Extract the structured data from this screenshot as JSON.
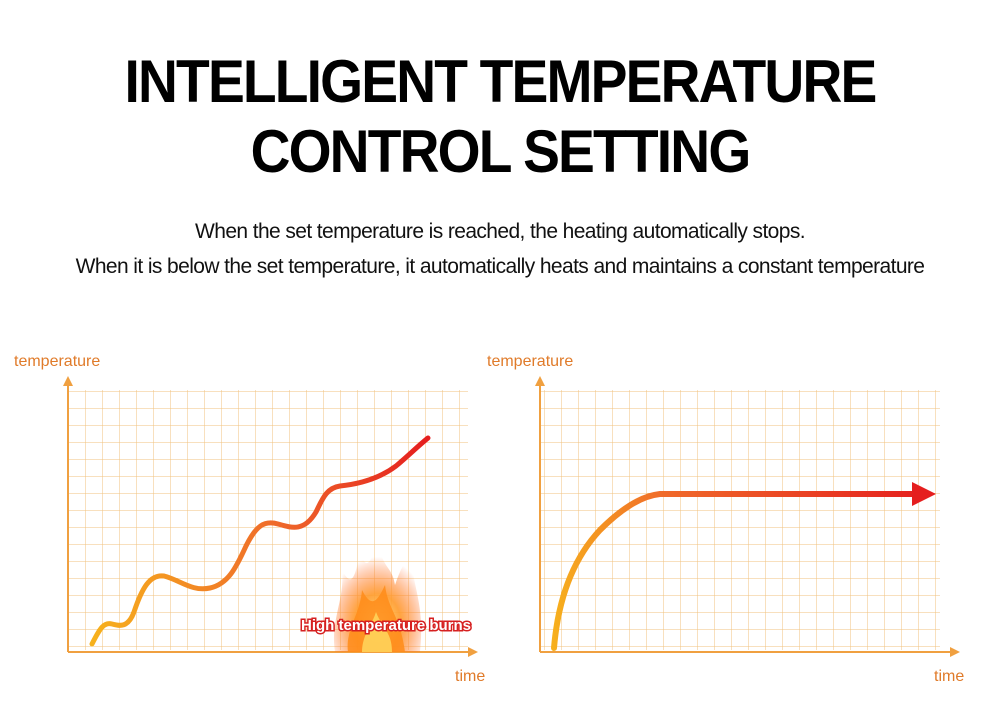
{
  "header": {
    "title_line1": "INTELLIGENT TEMPERATURE",
    "title_line2": "CONTROL SETTING",
    "subtitle_line1": "When the set temperature is reached, the heating automatically stops.",
    "subtitle_line2": "When it is below the set temperature, it automatically heats and maintains a constant temperature"
  },
  "left_diagram": {
    "y_axis_label": "temperature",
    "x_axis_label": "time",
    "annotation": "High temperature burns",
    "flame_icon": "fire-icon"
  },
  "right_diagram": {
    "y_axis_label": "temperature",
    "x_axis_label": "time",
    "arrow_icon": "arrow-right-icon"
  },
  "colors": {
    "grid": "#f1c27d",
    "axis": "#f0a040",
    "label": "#e07b2a",
    "curve_start": "#f7b21c",
    "curve_end": "#e51e1e"
  }
}
